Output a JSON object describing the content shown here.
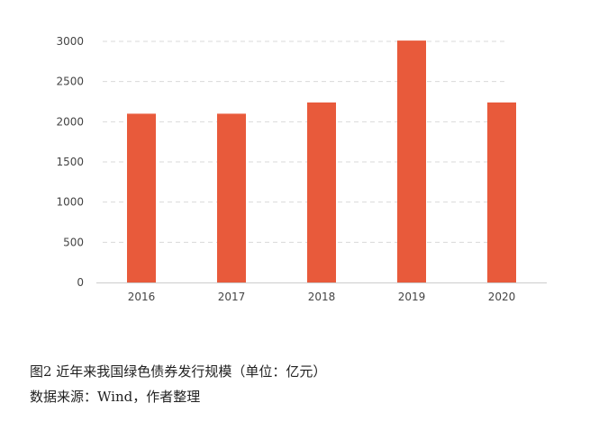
{
  "chart_data": {
    "type": "bar",
    "categories": [
      "2016",
      "2017",
      "2018",
      "2019",
      "2020"
    ],
    "values": [
      2100,
      2100,
      2240,
      3010,
      2240
    ],
    "title": "",
    "xlabel": "",
    "ylabel": "",
    "ylim": [
      0,
      3000
    ],
    "yticks": [
      "0",
      "500",
      "1000",
      "1500",
      "2000",
      "2500",
      "3000"
    ],
    "grid": "horizontal-dashed",
    "legend": "none",
    "bar_color": "#e85a3b",
    "grid_color": "#d9d9d9",
    "axis_color": "#cccccc"
  },
  "caption": {
    "title": "图2  近年来我国绿色债券发行规模（单位：亿元）",
    "source": "数据来源：Wind，作者整理"
  }
}
